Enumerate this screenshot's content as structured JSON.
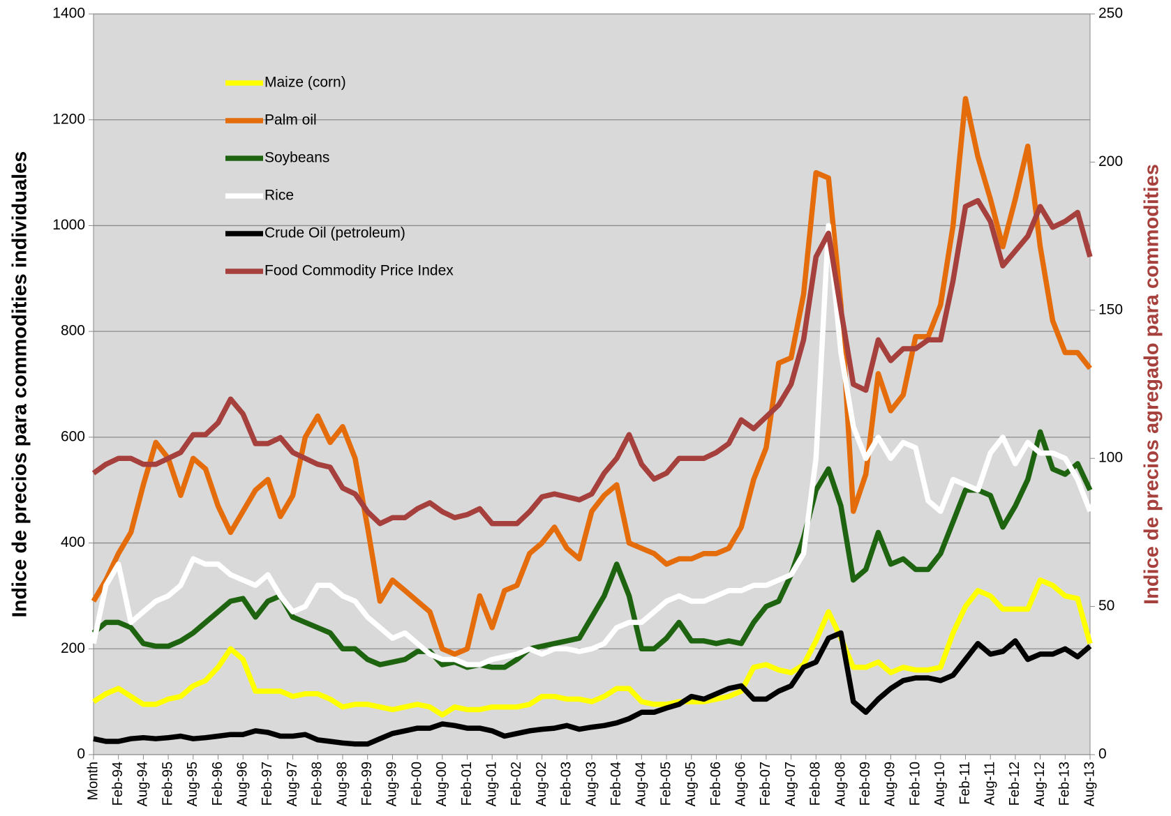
{
  "chart_data": {
    "type": "line",
    "y_label": "Indice de precios para commodities individuales",
    "y2_label": "Indice de precios agregado para commodities",
    "categories": [
      "Month",
      null,
      "Feb-94",
      null,
      "Aug-94",
      null,
      "Feb-95",
      null,
      "Aug-95",
      null,
      "Feb-96",
      null,
      "Aug-96",
      null,
      "Feb-97",
      null,
      "Aug-97",
      null,
      "Feb-98",
      null,
      "Aug-98",
      null,
      "Feb-99",
      null,
      "Aug-99",
      null,
      "Feb-00",
      null,
      "Aug-00",
      null,
      "Feb-01",
      null,
      "Aug-01",
      null,
      "Feb-02",
      null,
      "Aug-02",
      null,
      "Feb-03",
      null,
      "Aug-03",
      null,
      "Feb-04",
      null,
      "Aug-04",
      null,
      "Feb-05",
      null,
      "Aug-05",
      null,
      "Feb-06",
      null,
      "Aug-06",
      null,
      "Feb-07",
      null,
      "Aug-07",
      null,
      "Feb-08",
      null,
      "Aug-08",
      null,
      "Feb-09",
      null,
      "Aug-09",
      null,
      "Feb-10",
      null,
      "Aug-10",
      null,
      "Feb-11",
      null,
      "Aug-11",
      null,
      "Feb-12",
      null,
      "Aug-12",
      null,
      "Feb-13",
      null,
      "Aug-13"
    ],
    "series": [
      {
        "name": "Maize (corn)",
        "color": "#ffff00",
        "values": [
          100,
          115,
          125,
          110,
          95,
          95,
          105,
          110,
          130,
          140,
          165,
          200,
          180,
          120,
          120,
          120,
          110,
          115,
          115,
          105,
          90,
          95,
          95,
          90,
          85,
          90,
          95,
          90,
          75,
          90,
          85,
          85,
          90,
          90,
          90,
          95,
          110,
          110,
          105,
          105,
          100,
          110,
          125,
          125,
          100,
          95,
          95,
          100,
          100,
          100,
          105,
          110,
          120,
          165,
          170,
          160,
          155,
          170,
          215,
          270,
          220,
          165,
          165,
          175,
          155,
          165,
          160,
          160,
          165,
          230,
          280,
          310,
          300,
          275,
          275,
          275,
          330,
          320,
          300,
          295,
          210
        ]
      },
      {
        "name": "Palm oil",
        "color": "#e46c0a",
        "values": [
          290,
          330,
          380,
          420,
          510,
          590,
          560,
          490,
          560,
          540,
          470,
          420,
          460,
          500,
          520,
          450,
          490,
          600,
          640,
          590,
          620,
          560,
          430,
          290,
          330,
          310,
          290,
          270,
          200,
          190,
          200,
          300,
          240,
          310,
          320,
          380,
          400,
          430,
          390,
          370,
          460,
          490,
          510,
          400,
          390,
          380,
          360,
          370,
          370,
          380,
          380,
          390,
          430,
          520,
          580,
          740,
          750,
          870,
          1100,
          1090,
          850,
          460,
          530,
          720,
          650,
          680,
          790,
          790,
          850,
          1000,
          1240,
          1130,
          1050,
          960,
          1050,
          1150,
          960,
          820,
          760,
          760,
          730
        ]
      },
      {
        "name": "Soybeans",
        "color": "#1e6410",
        "values": [
          230,
          250,
          250,
          240,
          210,
          205,
          205,
          215,
          230,
          250,
          270,
          290,
          295,
          260,
          290,
          300,
          260,
          250,
          240,
          230,
          200,
          200,
          180,
          170,
          175,
          180,
          195,
          195,
          170,
          175,
          165,
          170,
          165,
          165,
          180,
          200,
          205,
          210,
          215,
          220,
          260,
          300,
          360,
          300,
          200,
          200,
          220,
          250,
          215,
          215,
          210,
          215,
          210,
          250,
          280,
          290,
          340,
          410,
          500,
          540,
          470,
          330,
          350,
          420,
          360,
          370,
          350,
          350,
          380,
          440,
          500,
          500,
          490,
          430,
          470,
          520,
          610,
          540,
          530,
          550,
          500
        ]
      },
      {
        "name": "Rice",
        "color": "#ffffff",
        "values": [
          210,
          320,
          360,
          250,
          270,
          290,
          300,
          320,
          370,
          360,
          360,
          340,
          330,
          320,
          340,
          300,
          270,
          280,
          320,
          320,
          300,
          290,
          260,
          240,
          220,
          230,
          210,
          190,
          180,
          180,
          170,
          170,
          180,
          185,
          190,
          200,
          190,
          200,
          200,
          195,
          200,
          210,
          240,
          250,
          250,
          270,
          290,
          300,
          290,
          290,
          300,
          310,
          310,
          320,
          320,
          330,
          340,
          380,
          560,
          1000,
          760,
          620,
          560,
          600,
          560,
          590,
          580,
          480,
          460,
          520,
          510,
          500,
          570,
          600,
          550,
          590,
          570,
          570,
          560,
          520,
          460
        ]
      },
      {
        "name": "Crude Oil (petroleum)",
        "color": "#000000",
        "values": [
          30,
          25,
          25,
          30,
          32,
          30,
          32,
          35,
          30,
          32,
          35,
          38,
          38,
          45,
          42,
          35,
          35,
          38,
          28,
          25,
          22,
          20,
          20,
          30,
          40,
          45,
          50,
          50,
          58,
          55,
          50,
          50,
          45,
          35,
          40,
          45,
          48,
          50,
          55,
          48,
          52,
          55,
          60,
          68,
          80,
          80,
          88,
          95,
          110,
          105,
          115,
          125,
          130,
          105,
          105,
          120,
          130,
          165,
          175,
          220,
          230,
          100,
          80,
          105,
          125,
          140,
          145,
          145,
          140,
          150,
          180,
          210,
          190,
          195,
          215,
          180,
          190,
          190,
          200,
          185,
          205
        ]
      },
      {
        "name": "Food Commodity Price Index",
        "color": "#a6403c",
        "axis": "y2",
        "values": [
          95,
          98,
          100,
          100,
          98,
          98,
          100,
          102,
          108,
          108,
          112,
          120,
          115,
          105,
          105,
          107,
          102,
          100,
          98,
          97,
          90,
          88,
          82,
          78,
          80,
          80,
          83,
          85,
          82,
          80,
          81,
          83,
          78,
          78,
          78,
          82,
          87,
          88,
          87,
          86,
          88,
          95,
          100,
          108,
          98,
          93,
          95,
          100,
          100,
          100,
          102,
          105,
          113,
          110,
          114,
          118,
          125,
          140,
          168,
          176,
          150,
          125,
          123,
          140,
          133,
          137,
          137,
          140,
          140,
          160,
          185,
          187,
          180,
          165,
          170,
          175,
          185,
          178,
          180,
          183,
          168
        ]
      }
    ],
    "ylim": [
      0,
      1400
    ],
    "yticks": [
      0,
      200,
      400,
      600,
      800,
      1000,
      1200,
      1400
    ],
    "y2lim": [
      0,
      250
    ],
    "y2ticks": [
      0,
      50,
      100,
      150,
      200,
      250
    ],
    "grid": true,
    "legend": "upper left"
  }
}
